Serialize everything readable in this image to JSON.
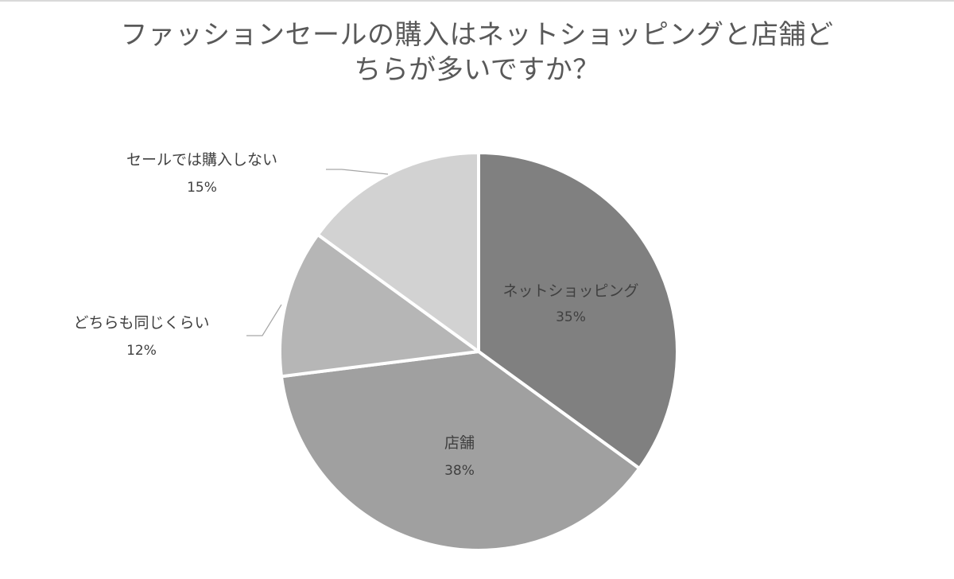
{
  "chart_data": {
    "type": "pie",
    "title": "ファッションセールの購入はネットショッピングと店舗どちらが多いですか？",
    "title_lines": [
      "ファッションセールの購入はネットショッピングと店舗ど",
      "ちらが多いですか？"
    ],
    "start_angle_deg": 0,
    "direction": "clockwise",
    "slices": [
      {
        "label": "ネットショッピング",
        "value": 35,
        "value_label": "35%",
        "color": "#808080",
        "label_placement": "inside"
      },
      {
        "label": "店舗",
        "value": 38,
        "value_label": "38%",
        "color": "#a0a0a0",
        "label_placement": "inside"
      },
      {
        "label": "どちらも同じくらい",
        "value": 12,
        "value_label": "12%",
        "color": "#b6b6b6",
        "label_placement": "outside-left"
      },
      {
        "label": "セールでは購入しない",
        "value": 15,
        "value_label": "15%",
        "color": "#d2d2d2",
        "label_placement": "outside-left"
      }
    ],
    "legend": "none",
    "slice_border_color": "#ffffff",
    "text_color": "#404040",
    "title_color": "#595959"
  }
}
